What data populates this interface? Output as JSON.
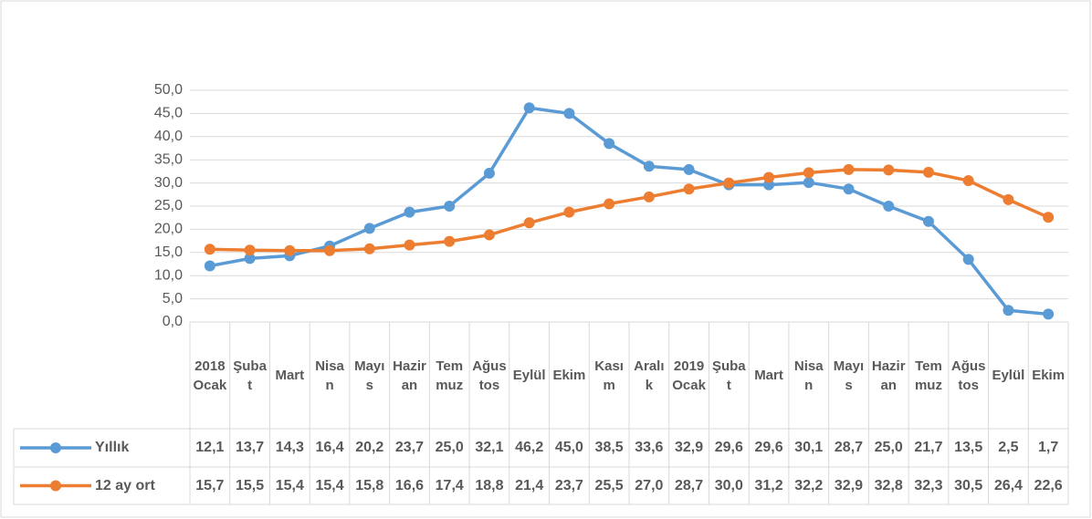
{
  "chart_data": {
    "type": "line",
    "categories": [
      "2018 Ocak",
      "Şubat",
      "Mart",
      "Nisan",
      "Mayıs",
      "Haziran",
      "Temmuz",
      "Ağustos",
      "Eylül",
      "Ekim",
      "Kasım",
      "Aralık",
      "2019 Ocak",
      "Şubat",
      "Mart",
      "Nisan",
      "Mayıs",
      "Haziran",
      "Temmuz",
      "Ağustos",
      "Eylül",
      "Ekim"
    ],
    "series": [
      {
        "name": "Yıllık",
        "color": "#5b9bd5",
        "values": [
          12.1,
          13.7,
          14.3,
          16.4,
          20.2,
          23.7,
          25.0,
          32.1,
          46.2,
          45.0,
          38.5,
          33.6,
          32.9,
          29.6,
          29.6,
          30.1,
          28.7,
          25.0,
          21.7,
          13.5,
          2.5,
          1.7
        ],
        "value_labels": [
          "12,1",
          "13,7",
          "14,3",
          "16,4",
          "20,2",
          "23,7",
          "25,0",
          "32,1",
          "46,2",
          "45,0",
          "38,5",
          "33,6",
          "32,9",
          "29,6",
          "29,6",
          "30,1",
          "28,7",
          "25,0",
          "21,7",
          "13,5",
          "2,5",
          "1,7"
        ]
      },
      {
        "name": "12 ay ort",
        "color": "#ed7d31",
        "values": [
          15.7,
          15.5,
          15.4,
          15.4,
          15.8,
          16.6,
          17.4,
          18.8,
          21.4,
          23.7,
          25.5,
          27.0,
          28.7,
          30.0,
          31.2,
          32.2,
          32.9,
          32.8,
          32.3,
          30.5,
          26.4,
          22.6
        ],
        "value_labels": [
          "15,7",
          "15,5",
          "15,4",
          "15,4",
          "15,8",
          "16,6",
          "17,4",
          "18,8",
          "21,4",
          "23,7",
          "25,5",
          "27,0",
          "28,7",
          "30,0",
          "31,2",
          "32,2",
          "32,9",
          "32,8",
          "32,3",
          "30,5",
          "26,4",
          "22,6"
        ]
      }
    ],
    "ylim": [
      0,
      50
    ],
    "yticks": [
      {
        "value": 0,
        "label": "0,0"
      },
      {
        "value": 5,
        "label": "5,0"
      },
      {
        "value": 10,
        "label": "10,0"
      },
      {
        "value": 15,
        "label": "15,0"
      },
      {
        "value": 20,
        "label": "20,0"
      },
      {
        "value": 25,
        "label": "25,0"
      },
      {
        "value": 30,
        "label": "30,0"
      },
      {
        "value": 35,
        "label": "35,0"
      },
      {
        "value": 40,
        "label": "40,0"
      },
      {
        "value": 45,
        "label": "45,0"
      },
      {
        "value": 50,
        "label": "50,0"
      }
    ],
    "grid": true
  }
}
